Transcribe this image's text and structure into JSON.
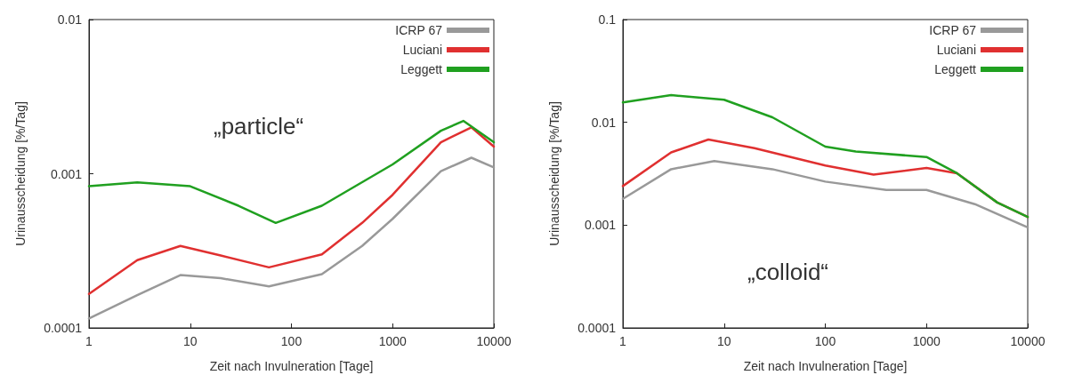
{
  "chart_data": [
    {
      "type": "line",
      "xlabel": "Zeit nach Invulneration [Tage]",
      "ylabel": "Urinausscheidung [%/Tag]",
      "annotations": [
        "„particle“"
      ],
      "log": "xy",
      "grid": false,
      "legend": "top right",
      "marker": "none",
      "line_style": "solid",
      "xlim": [
        1,
        10000
      ],
      "xticks": [
        1,
        10,
        100,
        1000,
        10000
      ],
      "ylim": [
        0.0001,
        0.01
      ],
      "yticks": [
        0.0001,
        0.001,
        0.01
      ],
      "series": [
        {
          "name": "ICRP 67",
          "color": "#999999",
          "x": [
            1,
            3,
            8,
            20,
            60,
            200,
            500,
            1000,
            3000,
            6000,
            10000
          ],
          "values": [
            0.000115,
            0.000163,
            0.00022,
            0.00021,
            0.000186,
            0.000223,
            0.00034,
            0.00051,
            0.00104,
            0.00127,
            0.0011
          ]
        },
        {
          "name": "Luciani",
          "color": "#e03030",
          "x": [
            1,
            3,
            8,
            20,
            60,
            200,
            500,
            1000,
            3000,
            6000,
            10000
          ],
          "values": [
            0.000166,
            0.000275,
            0.00034,
            0.000295,
            0.000247,
            0.0003,
            0.00048,
            0.00073,
            0.0016,
            0.002,
            0.0015
          ]
        },
        {
          "name": "Leggett",
          "color": "#20a020",
          "x": [
            1,
            3,
            10,
            30,
            70,
            200,
            1000,
            3000,
            5000,
            10000
          ],
          "values": [
            0.00083,
            0.00088,
            0.00083,
            0.00062,
            0.00048,
            0.00062,
            0.00115,
            0.0019,
            0.0022,
            0.0016
          ]
        }
      ]
    },
    {
      "type": "line",
      "xlabel": "Zeit nach Invulneration [Tage]",
      "ylabel": "Urinausscheidung [%/Tag]",
      "annotations": [
        "„colloid“"
      ],
      "log": "xy",
      "grid": false,
      "legend": "top right",
      "marker": "none",
      "line_style": "solid",
      "xlim": [
        1,
        10000
      ],
      "xticks": [
        1,
        10,
        100,
        1000,
        10000
      ],
      "ylim": [
        0.0001,
        0.1
      ],
      "yticks": [
        0.0001,
        0.001,
        0.01,
        0.1
      ],
      "series": [
        {
          "name": "ICRP 67",
          "color": "#999999",
          "x": [
            1,
            3,
            8,
            30,
            100,
            400,
            1000,
            3000,
            10000
          ],
          "values": [
            0.0018,
            0.0035,
            0.0042,
            0.0035,
            0.00265,
            0.0022,
            0.0022,
            0.0016,
            0.00095
          ]
        },
        {
          "name": "Luciani",
          "color": "#e03030",
          "x": [
            1,
            3,
            7,
            20,
            100,
            300,
            1000,
            2000,
            5000,
            10000
          ],
          "values": [
            0.0024,
            0.0051,
            0.0068,
            0.0056,
            0.0038,
            0.0031,
            0.0036,
            0.0032,
            0.00166,
            0.0012
          ]
        },
        {
          "name": "Leggett",
          "color": "#20a020",
          "x": [
            1,
            3,
            10,
            30,
            100,
            200,
            1000,
            2000,
            5000,
            10000
          ],
          "values": [
            0.0156,
            0.0184,
            0.0166,
            0.0112,
            0.0058,
            0.0052,
            0.0046,
            0.0032,
            0.00166,
            0.0012
          ]
        }
      ]
    }
  ]
}
